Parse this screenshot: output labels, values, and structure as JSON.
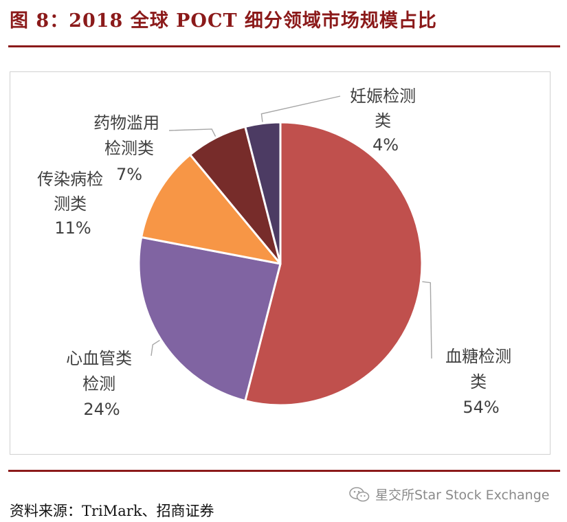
{
  "figure": {
    "title": "图 8：2018 全球 POCT 细分领域市场规模占比",
    "source": "资料来源：TriMark、招商证券",
    "watermark": "星交所Star Stock Exchange"
  },
  "chart_data": {
    "type": "pie",
    "title": "",
    "slices": [
      {
        "lines": [
          "血糖检测",
          "类"
        ],
        "value": 54,
        "label": "54%",
        "color": "#c0504d"
      },
      {
        "lines": [
          "心血管类",
          "检测"
        ],
        "value": 24,
        "label": "24%",
        "color": "#8064a2"
      },
      {
        "lines": [
          "传染病检",
          "测类"
        ],
        "value": 11,
        "label": "11%",
        "color": "#f79646"
      },
      {
        "lines": [
          "药物滥用",
          "检测类"
        ],
        "value": 7,
        "label": "7%",
        "color": "#772c2a"
      },
      {
        "lines": [
          "妊娠检测",
          "类"
        ],
        "value": 4,
        "label": "4%",
        "color": "#4c3b63"
      }
    ]
  }
}
